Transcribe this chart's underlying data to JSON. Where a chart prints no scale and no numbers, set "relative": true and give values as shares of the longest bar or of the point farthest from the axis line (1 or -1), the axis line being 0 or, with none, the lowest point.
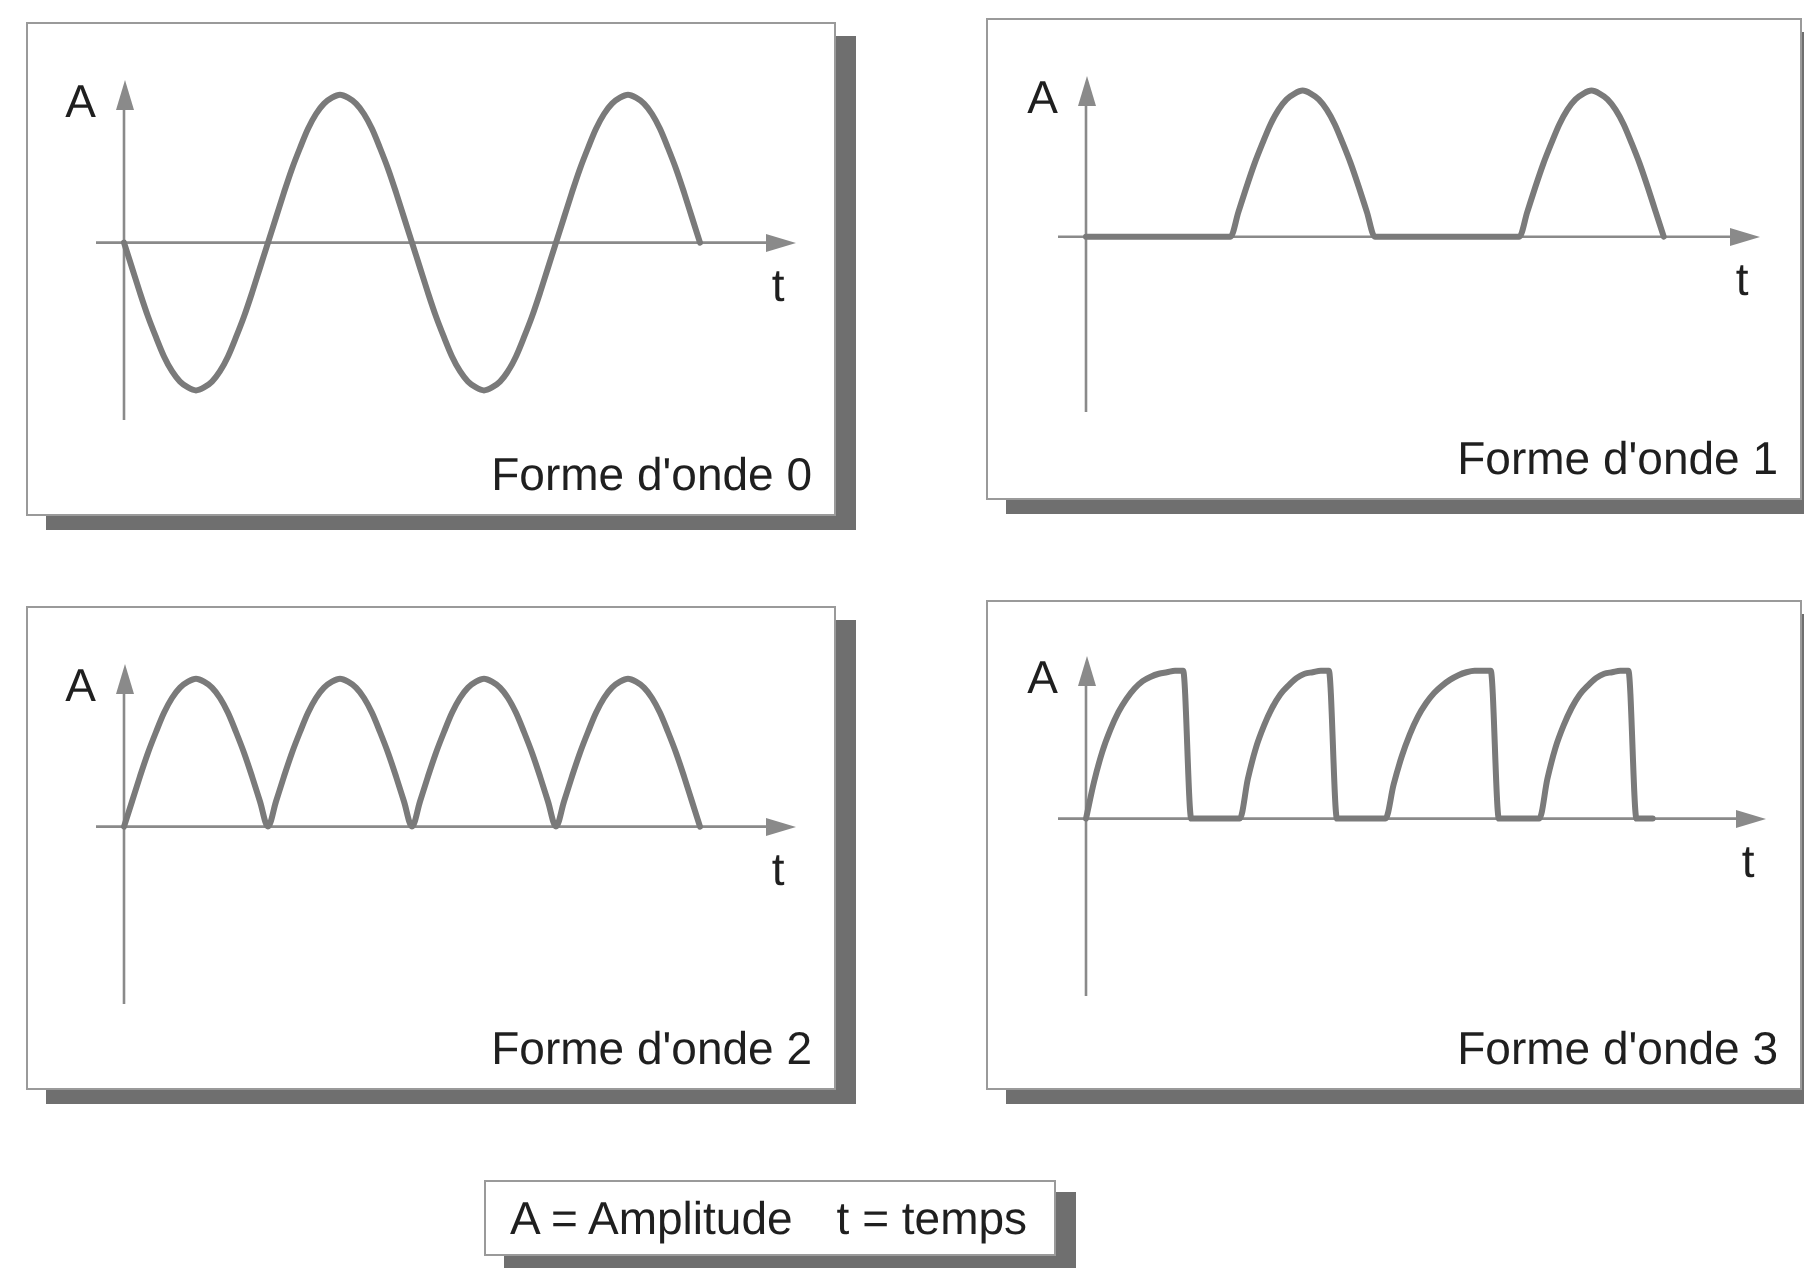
{
  "chart_data": [
    {
      "type": "line",
      "title": "Forme d'onde 0",
      "xlabel": "t",
      "ylabel": "A",
      "relative": true,
      "color": "#7a7a7a",
      "categories": [
        null,
        null,
        null,
        null,
        null,
        null,
        null,
        null,
        null,
        null,
        null,
        null,
        null,
        null,
        null,
        null,
        null,
        null,
        null,
        null,
        null,
        null,
        null,
        null,
        null,
        null,
        null,
        null,
        null,
        null,
        null,
        null,
        null,
        null,
        null,
        null,
        null,
        null,
        null,
        null,
        null,
        null,
        null,
        null,
        null,
        null,
        null,
        null,
        null,
        null,
        null,
        null,
        null,
        null,
        null,
        null,
        null,
        null,
        null,
        null,
        null,
        null,
        null,
        null,
        null,
        null,
        null,
        null,
        null,
        null,
        null,
        null,
        null,
        null,
        null,
        null,
        null,
        null,
        null,
        null,
        null,
        null,
        null,
        null,
        null
      ],
      "values": [
        0,
        -0.17,
        -0.34,
        -0.5,
        -0.64,
        -0.77,
        -0.87,
        -0.94,
        -0.98,
        -1,
        -0.98,
        -0.94,
        -0.87,
        -0.77,
        -0.64,
        -0.5,
        -0.34,
        -0.17,
        0,
        0.17,
        0.34,
        0.5,
        0.64,
        0.77,
        0.87,
        0.94,
        0.98,
        1,
        0.98,
        0.94,
        0.87,
        0.77,
        0.64,
        0.5,
        0.34,
        0.17,
        0,
        -0.17,
        -0.34,
        -0.5,
        -0.64,
        -0.77,
        -0.87,
        -0.94,
        -0.98,
        -1,
        -0.98,
        -0.94,
        -0.87,
        -0.77,
        -0.64,
        -0.5,
        -0.34,
        -0.17,
        0,
        0.17,
        0.34,
        0.5,
        0.64,
        0.77,
        0.87,
        0.94,
        0.98,
        1,
        0.98,
        0.94,
        0.87,
        0.77,
        0.64,
        0.5,
        0.34,
        0.17,
        0,
        null,
        null,
        null,
        null,
        null,
        null,
        null,
        null,
        null,
        null,
        null,
        null
      ]
    },
    {
      "type": "line",
      "title": "Forme d'onde 1",
      "xlabel": "t",
      "ylabel": "A",
      "relative": true,
      "color": "#7a7a7a",
      "categories": [
        null,
        null,
        null,
        null,
        null,
        null,
        null,
        null,
        null,
        null,
        null,
        null,
        null,
        null,
        null,
        null,
        null,
        null,
        null,
        null,
        null,
        null,
        null,
        null,
        null,
        null,
        null,
        null,
        null,
        null,
        null,
        null,
        null,
        null,
        null,
        null,
        null,
        null,
        null,
        null,
        null,
        null,
        null,
        null,
        null,
        null,
        null,
        null,
        null,
        null,
        null,
        null,
        null,
        null,
        null,
        null,
        null,
        null,
        null,
        null,
        null,
        null,
        null,
        null,
        null,
        null,
        null,
        null,
        null,
        null,
        null,
        null,
        null,
        null,
        null,
        null,
        null,
        null,
        null,
        null,
        null,
        null,
        null,
        null,
        null
      ],
      "values": [
        0,
        0,
        0,
        0,
        0,
        0,
        0,
        0,
        0,
        0,
        0,
        0,
        0,
        0,
        0,
        0,
        0,
        0,
        0,
        0.17,
        0.34,
        0.5,
        0.64,
        0.77,
        0.87,
        0.94,
        0.98,
        1,
        0.98,
        0.94,
        0.87,
        0.77,
        0.64,
        0.5,
        0.34,
        0.17,
        0,
        0,
        0,
        0,
        0,
        0,
        0,
        0,
        0,
        0,
        0,
        0,
        0,
        0,
        0,
        0,
        0,
        0,
        0,
        0.17,
        0.34,
        0.5,
        0.64,
        0.77,
        0.87,
        0.94,
        0.98,
        1,
        0.98,
        0.94,
        0.87,
        0.77,
        0.64,
        0.5,
        0.34,
        0.17,
        0,
        null,
        null,
        null,
        null,
        null,
        null,
        null,
        null,
        null,
        null,
        null,
        null
      ]
    },
    {
      "type": "line",
      "title": "Forme d'onde 2",
      "xlabel": "t",
      "ylabel": "A",
      "relative": true,
      "color": "#7a7a7a",
      "categories": [
        null,
        null,
        null,
        null,
        null,
        null,
        null,
        null,
        null,
        null,
        null,
        null,
        null,
        null,
        null,
        null,
        null,
        null,
        null,
        null,
        null,
        null,
        null,
        null,
        null,
        null,
        null,
        null,
        null,
        null,
        null,
        null,
        null,
        null,
        null,
        null,
        null,
        null,
        null,
        null,
        null,
        null,
        null,
        null,
        null,
        null,
        null,
        null,
        null,
        null,
        null,
        null,
        null,
        null,
        null,
        null,
        null,
        null,
        null,
        null,
        null,
        null,
        null,
        null,
        null,
        null,
        null,
        null,
        null,
        null,
        null,
        null,
        null,
        null,
        null,
        null,
        null,
        null,
        null,
        null,
        null,
        null,
        null,
        null,
        null
      ],
      "values": [
        0,
        0.17,
        0.34,
        0.5,
        0.64,
        0.77,
        0.87,
        0.94,
        0.98,
        1,
        0.98,
        0.94,
        0.87,
        0.77,
        0.64,
        0.5,
        0.34,
        0.17,
        0,
        0.17,
        0.34,
        0.5,
        0.64,
        0.77,
        0.87,
        0.94,
        0.98,
        1,
        0.98,
        0.94,
        0.87,
        0.77,
        0.64,
        0.5,
        0.34,
        0.17,
        0,
        0.17,
        0.34,
        0.5,
        0.64,
        0.77,
        0.87,
        0.94,
        0.98,
        1,
        0.98,
        0.94,
        0.87,
        0.77,
        0.64,
        0.5,
        0.34,
        0.17,
        0,
        0.17,
        0.34,
        0.5,
        0.64,
        0.77,
        0.87,
        0.94,
        0.98,
        1,
        0.98,
        0.94,
        0.87,
        0.77,
        0.64,
        0.5,
        0.34,
        0.17,
        0,
        null,
        null,
        null,
        null,
        null,
        null,
        null,
        null,
        null,
        null,
        null,
        null
      ]
    },
    {
      "type": "line",
      "title": "Forme d'onde 3",
      "xlabel": "t",
      "ylabel": "A",
      "relative": true,
      "color": "#7a7a7a",
      "categories": [
        null,
        null,
        null,
        null,
        null,
        null,
        null,
        null,
        null,
        null,
        null,
        null,
        null,
        null,
        null,
        null,
        null,
        null,
        null,
        null,
        null,
        null,
        null,
        null,
        null,
        null,
        null,
        null,
        null,
        null,
        null,
        null,
        null,
        null,
        null,
        null,
        null,
        null,
        null,
        null,
        null,
        null,
        null,
        null,
        null,
        null,
        null,
        null,
        null,
        null,
        null,
        null,
        null,
        null,
        null,
        null,
        null,
        null,
        null,
        null,
        null,
        null,
        null,
        null,
        null,
        null,
        null,
        null,
        null,
        null,
        null,
        null,
        null,
        null,
        null,
        null,
        null,
        null,
        null,
        null,
        null,
        null,
        null,
        null,
        null
      ],
      "values": [
        0,
        0.25,
        0.45,
        0.6,
        0.72,
        0.81,
        0.88,
        0.93,
        0.96,
        0.98,
        0.99,
        1,
        1,
        0,
        0,
        0,
        0,
        0,
        0,
        0,
        0.27,
        0.48,
        0.63,
        0.75,
        0.84,
        0.9,
        0.95,
        0.98,
        0.99,
        1,
        1,
        0,
        0,
        0,
        0,
        0,
        0,
        0,
        0.23,
        0.42,
        0.57,
        0.69,
        0.78,
        0.85,
        0.9,
        0.94,
        0.97,
        0.99,
        1,
        1,
        1,
        0,
        0,
        0,
        0,
        0,
        0,
        0.27,
        0.48,
        0.63,
        0.75,
        0.84,
        0.9,
        0.95,
        0.98,
        0.99,
        1,
        1,
        0,
        0,
        0,
        null,
        null,
        null,
        null,
        null,
        null,
        null,
        null,
        null,
        null,
        null,
        null,
        null,
        null
      ]
    },
    {
      "type": "other",
      "annotations": [
        "A = Amplitude",
        "t = temps"
      ]
    }
  ]
}
